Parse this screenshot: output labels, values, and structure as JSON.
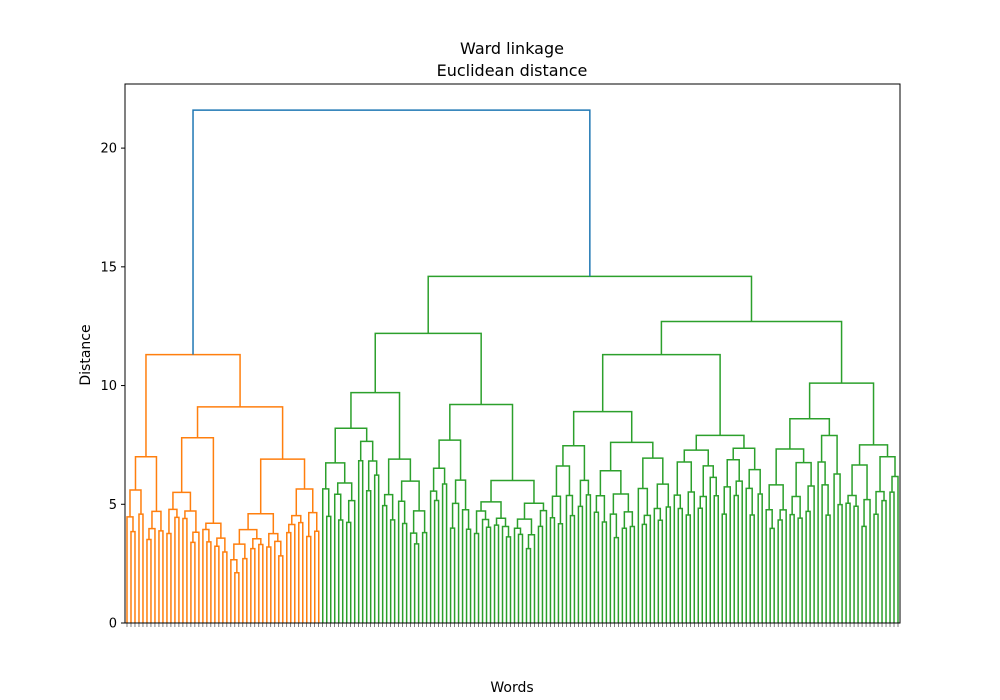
{
  "chart_data": {
    "type": "dendrogram",
    "title": "Ward linkage",
    "subtitle": "Euclidean distance",
    "xlabel": "Words",
    "ylabel": "Distance",
    "ylim": [
      0,
      22.7
    ],
    "yticks": [
      "0",
      "5",
      "10",
      "15",
      "20"
    ],
    "grid": false,
    "leaf_count": 194,
    "colors": {
      "cluster_1": "#ff7f0e",
      "cluster_2": "#2ca02c",
      "above_threshold": "#1f77b4"
    },
    "root_height": 21.6,
    "clusters": [
      {
        "color": "#ff7f0e",
        "merge_height": 11.3,
        "subclusters": [
          {
            "merge_height": 7.0,
            "leaves": 10,
            "sub_heights": [
              6.7,
              5.6,
              4.7,
              4.3,
              2.5
            ]
          },
          {
            "merge_height": 9.1,
            "leaves": 39,
            "sub_heights": [
              8.1,
              7.8,
              6.9,
              6.4,
              6.0,
              5.5,
              4.6,
              4.2
            ]
          }
        ]
      },
      {
        "color": "#2ca02c",
        "merge_height": 14.6,
        "subclusters": [
          {
            "merge_height": 12.2,
            "leaves": 57,
            "sub_heights": [
              10.3,
              9.7,
              9.2,
              8.9,
              8.6,
              8.2,
              7.7,
              6.9,
              6.0,
              2.1
            ]
          },
          {
            "merge_height": 12.7,
            "leaves": 88,
            "sub_heights": [
              11.8,
              11.3,
              10.1,
              9.9,
              9.7,
              8.9,
              8.6,
              7.9,
              7.5,
              7.1,
              6.6,
              5.8,
              4.0
            ]
          }
        ]
      }
    ]
  }
}
